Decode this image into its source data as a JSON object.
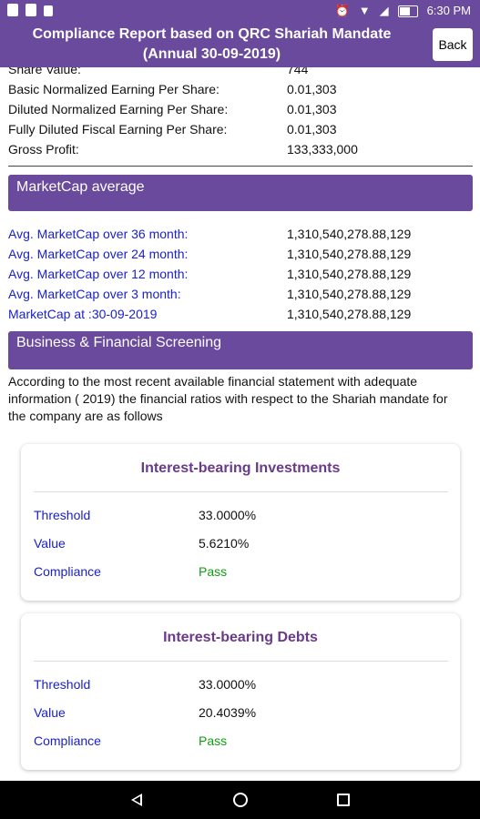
{
  "status_bar": {
    "time": "6:30 PM",
    "icons": [
      "image-icon",
      "sd-card-icon",
      "lock-icon",
      "alarm-icon",
      "wifi-icon",
      "signal-icon",
      "battery-icon"
    ]
  },
  "app_bar": {
    "title_line1": "Compliance Report based on QRC Shariah Mandate",
    "title_line2": "(Annual 30-09-2019)",
    "back_label": "Back"
  },
  "financials": [
    {
      "label": "Share Value:",
      "value": "744"
    },
    {
      "label": "Basic Normalized Earning Per Share:",
      "value": "0.01,303"
    },
    {
      "label": "Diluted Normalized Earning Per Share:",
      "value": "0.01,303"
    },
    {
      "label": "Fully Diluted Fiscal Earning Per Share:",
      "value": "0.01,303"
    },
    {
      "label": "Gross Profit:",
      "value": "133,333,000"
    }
  ],
  "marketcap": {
    "header": "MarketCap average",
    "rows": [
      {
        "label": "Avg. MarketCap over 36 month:",
        "value": "1,310,540,278.88,129"
      },
      {
        "label": "Avg. MarketCap over 24 month:",
        "value": "1,310,540,278.88,129"
      },
      {
        "label": "Avg. MarketCap over 12 month:",
        "value": "1,310,540,278.88,129"
      },
      {
        "label": "Avg. MarketCap over 3 month:",
        "value": "1,310,540,278.88,129"
      },
      {
        "label": "MarketCap at :30-09-2019",
        "value": "1,310,540,278.88,129"
      }
    ]
  },
  "screening": {
    "header": "Business & Financial Screening",
    "description": "According to the most recent available financial statement with adequate information ( 2019) the financial ratios with respect to the Shariah mandate for the company are as follows"
  },
  "cards": [
    {
      "title": "Interest-bearing Investments",
      "threshold_label": "Threshold",
      "threshold": "33.0000%",
      "value_label": "Value",
      "value": "5.6210%",
      "compliance_label": "Compliance",
      "compliance": "Pass"
    },
    {
      "title": "Interest-bearing Debts",
      "threshold_label": "Threshold",
      "threshold": "33.0000%",
      "value_label": "Value",
      "value": "20.4039%",
      "compliance_label": "Compliance",
      "compliance": "Pass"
    }
  ],
  "colors": {
    "primary": "#6a4a9c",
    "link": "#1a22c8",
    "pass": "#129c12"
  }
}
